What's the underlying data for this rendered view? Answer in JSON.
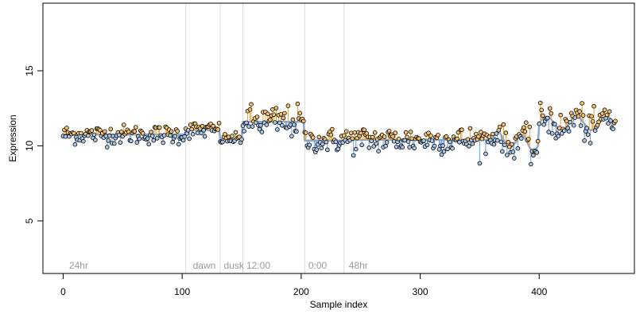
{
  "chart_data": {
    "type": "scatter",
    "title": "",
    "xlabel": "Sample index",
    "ylabel": "Expression",
    "xlim": [
      -17,
      480
    ],
    "ylim": [
      1.5,
      19.5
    ],
    "xticks": [
      0,
      100,
      200,
      300,
      400
    ],
    "yticks": [
      5,
      10,
      15
    ],
    "grid": false,
    "phase_lines": [
      103,
      132,
      151,
      203,
      236
    ],
    "phase_labels": [
      {
        "x": 3,
        "text": "24hr"
      },
      {
        "x": 107,
        "text": "dawn"
      },
      {
        "x": 133,
        "text": "dusk"
      },
      {
        "x": 152,
        "text": "12:00"
      },
      {
        "x": 204,
        "text": "0:00"
      },
      {
        "x": 238,
        "text": "48hr"
      }
    ],
    "segments": [
      {
        "start": 0,
        "end": 103,
        "mean": 10.75,
        "noise": 0.32
      },
      {
        "start": 103,
        "end": 132,
        "mean": 11.05,
        "noise": 0.28
      },
      {
        "start": 132,
        "end": 151,
        "mean": 10.45,
        "noise": 0.18
      },
      {
        "start": 151,
        "end": 203,
        "mean": 11.6,
        "noise": 0.55
      },
      {
        "start": 203,
        "end": 236,
        "mean": 10.35,
        "noise": 0.4
      },
      {
        "start": 236,
        "end": 380,
        "mean": 10.4,
        "noise": 0.45
      },
      {
        "start": 380,
        "end": 400,
        "mean": 10.2,
        "noise": 0.5
      },
      {
        "start": 400,
        "end": 465,
        "mean": 11.5,
        "noise": 0.55
      }
    ],
    "n_points": 465,
    "colors": {
      "above": "#f5c16e",
      "below": "#a9c5e8",
      "stem_above": "#e8a33a",
      "stem_below": "#6f9fd6",
      "fit": "#8fa9d4",
      "phase_line": "#dddddd",
      "point_edge": "#000000"
    }
  }
}
